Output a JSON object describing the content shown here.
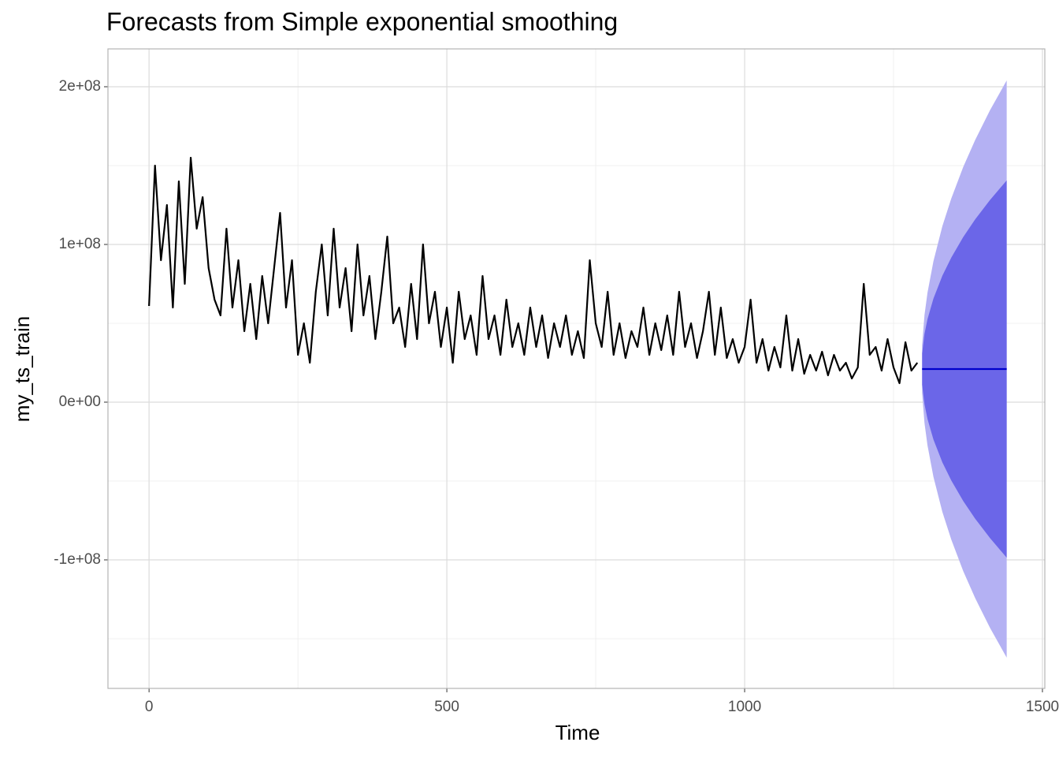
{
  "chart_data": {
    "type": "line",
    "title": "Forecasts from Simple exponential smoothing",
    "xlabel": "Time",
    "ylabel": "my_ts_train",
    "xlim": [
      -69,
      1504
    ],
    "ylim": [
      -181500000,
      224000000
    ],
    "xticks": [
      0,
      500,
      1000,
      1500
    ],
    "yticks": [
      {
        "value": -100000000,
        "label": "-1e+08"
      },
      {
        "value": 0,
        "label": "0e+00"
      },
      {
        "value": 100000000,
        "label": "1e+08"
      },
      {
        "value": 200000000,
        "label": "2e+08"
      }
    ],
    "xminor": [
      250,
      750,
      1250
    ],
    "yminor": [
      -150000000,
      -50000000,
      50000000,
      150000000
    ],
    "grid": true,
    "series": [
      {
        "color": "#000000",
        "x": [
          0,
          10,
          20,
          30,
          40,
          50,
          60,
          70,
          80,
          90,
          100,
          110,
          120,
          130,
          140,
          150,
          160,
          170,
          180,
          190,
          200,
          210,
          220,
          230,
          240,
          250,
          260,
          270,
          280,
          290,
          300,
          310,
          320,
          330,
          340,
          350,
          360,
          370,
          380,
          390,
          400,
          410,
          420,
          430,
          440,
          450,
          460,
          470,
          480,
          490,
          500,
          510,
          520,
          530,
          540,
          550,
          560,
          570,
          580,
          590,
          600,
          610,
          620,
          630,
          640,
          650,
          660,
          670,
          680,
          690,
          700,
          710,
          720,
          730,
          740,
          750,
          760,
          770,
          780,
          790,
          800,
          810,
          820,
          830,
          840,
          850,
          860,
          870,
          880,
          890,
          900,
          910,
          920,
          930,
          940,
          950,
          960,
          970,
          980,
          990,
          1000,
          1010,
          1020,
          1030,
          1040,
          1050,
          1060,
          1070,
          1080,
          1090,
          1100,
          1110,
          1120,
          1130,
          1140,
          1150,
          1160,
          1170,
          1180,
          1190,
          1200,
          1210,
          1220,
          1230,
          1240,
          1250,
          1260,
          1270,
          1280,
          1290
        ],
        "values": [
          61000000,
          150000000,
          90000000,
          125000000,
          60000000,
          140000000,
          75000000,
          155000000,
          110000000,
          130000000,
          85000000,
          65000000,
          55000000,
          110000000,
          60000000,
          90000000,
          45000000,
          75000000,
          40000000,
          80000000,
          50000000,
          85000000,
          120000000,
          60000000,
          90000000,
          30000000,
          50000000,
          25000000,
          70000000,
          100000000,
          55000000,
          110000000,
          60000000,
          85000000,
          45000000,
          100000000,
          55000000,
          80000000,
          40000000,
          70000000,
          105000000,
          50000000,
          60000000,
          35000000,
          75000000,
          40000000,
          100000000,
          50000000,
          70000000,
          35000000,
          60000000,
          25000000,
          70000000,
          40000000,
          55000000,
          30000000,
          80000000,
          40000000,
          55000000,
          30000000,
          65000000,
          35000000,
          50000000,
          30000000,
          60000000,
          35000000,
          55000000,
          28000000,
          50000000,
          35000000,
          55000000,
          30000000,
          45000000,
          28000000,
          90000000,
          50000000,
          35000000,
          70000000,
          30000000,
          50000000,
          28000000,
          45000000,
          35000000,
          60000000,
          30000000,
          50000000,
          33000000,
          55000000,
          30000000,
          70000000,
          35000000,
          50000000,
          28000000,
          45000000,
          70000000,
          30000000,
          60000000,
          28000000,
          40000000,
          25000000,
          35000000,
          65000000,
          25000000,
          40000000,
          20000000,
          35000000,
          22000000,
          55000000,
          20000000,
          40000000,
          18000000,
          30000000,
          20000000,
          32000000,
          17000000,
          30000000,
          20000000,
          25000000,
          15000000,
          22000000,
          75000000,
          30000000,
          35000000,
          20000000,
          40000000,
          22000000,
          12000000,
          38000000,
          20000000,
          25000000
        ]
      }
    ],
    "forecast": {
      "color": "#0000cc",
      "color80": "#6b66e8",
      "color95": "#b4b1f3",
      "x": [
        1298,
        1302,
        1307,
        1317,
        1332,
        1347,
        1367,
        1387,
        1412,
        1440
      ],
      "mean": [
        21000000,
        21000000,
        21000000,
        21000000,
        21000000,
        21000000,
        21000000,
        21000000,
        21000000,
        21000000
      ],
      "lo80": [
        11000000,
        -1400000,
        -10600000,
        -23700000,
        -38200000,
        -49700000,
        -62700000,
        -73900000,
        -86200000,
        -98600000
      ],
      "hi80": [
        31000000,
        43400000,
        52600000,
        65700000,
        80200000,
        91700000,
        104700000,
        115900000,
        128200000,
        140600000
      ],
      "lo95": [
        5700000,
        -13300000,
        -27400000,
        -47400000,
        -69600000,
        -87200000,
        -107100000,
        -124200000,
        -143100000,
        -162000000
      ],
      "hi95": [
        36300000,
        55300000,
        69400000,
        89400000,
        111600000,
        129200000,
        149100000,
        166200000,
        185100000,
        204000000
      ]
    }
  }
}
